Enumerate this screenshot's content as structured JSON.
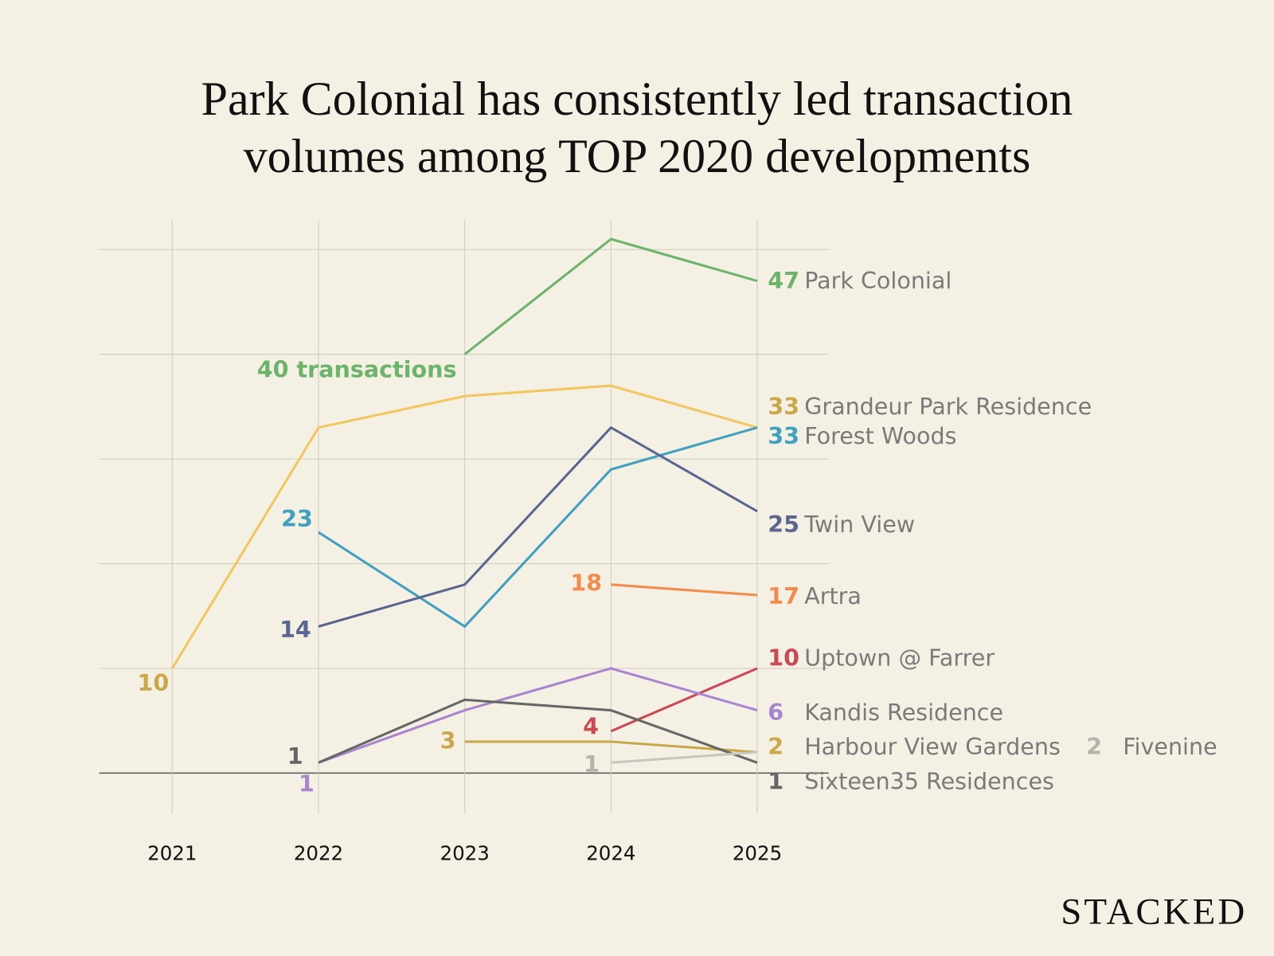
{
  "chart_data": {
    "type": "line",
    "title": "Park Colonial has consistently led transaction\nvolumes among TOP 2020 developments",
    "watermark": "STACKED",
    "x": [
      2021,
      2022,
      2023,
      2024,
      2025
    ],
    "xlim": [
      2020.5,
      2025.5
    ],
    "xticks": [
      2021,
      2022,
      2023,
      2024,
      2025
    ],
    "ylim": [
      0,
      50
    ],
    "yticks": [
      0,
      10,
      20,
      30,
      40,
      50
    ],
    "grid": true,
    "series": [
      {
        "name": "Park Colonial",
        "color": "#6cb36c",
        "values": [
          null,
          null,
          40,
          51,
          47
        ],
        "value_labels": [
          null,
          null,
          "40 transactions",
          null,
          "47"
        ]
      },
      {
        "name": "Grandeur Park Residence",
        "color": "#f2c660",
        "values": [
          10,
          33,
          36,
          37,
          33
        ],
        "value_labels": [
          "10",
          null,
          null,
          null,
          "33"
        ]
      },
      {
        "name": "Forest Woods",
        "color": "#3fa0bf",
        "values": [
          null,
          23,
          14,
          29,
          33
        ],
        "value_labels": [
          null,
          "23",
          null,
          null,
          "33"
        ]
      },
      {
        "name": "Twin View",
        "color": "#5b6690",
        "values": [
          null,
          14,
          18,
          33,
          25
        ],
        "value_labels": [
          null,
          "14",
          null,
          null,
          "25"
        ]
      },
      {
        "name": "Artra",
        "color": "#f28c4c",
        "values": [
          null,
          null,
          null,
          18,
          17
        ],
        "value_labels": [
          null,
          null,
          null,
          "18",
          "17"
        ]
      },
      {
        "name": "Uptown @ Farrer",
        "color": "#c94a55",
        "values": [
          null,
          null,
          null,
          4,
          10
        ],
        "value_labels": [
          null,
          null,
          null,
          "4",
          "10"
        ]
      },
      {
        "name": "Kandis Residence",
        "color": "#a985cf",
        "values": [
          null,
          1,
          6,
          10,
          6
        ],
        "value_labels": [
          null,
          "1",
          null,
          null,
          "6"
        ]
      },
      {
        "name": "Harbour View Gardens",
        "color": "#c9a84a",
        "values": [
          null,
          null,
          3,
          3,
          2
        ],
        "value_labels": [
          null,
          null,
          "3",
          null,
          "2"
        ]
      },
      {
        "name": "Sixteen35 Residences",
        "color": "#666666",
        "values": [
          null,
          1,
          7,
          6,
          1
        ],
        "value_labels": [
          null,
          "1",
          null,
          null,
          "1"
        ]
      },
      {
        "name": "Fivenine",
        "color": "#c8c6be",
        "values": [
          null,
          null,
          null,
          1,
          2
        ],
        "value_labels": [
          null,
          null,
          null,
          "1",
          "2"
        ]
      }
    ]
  }
}
